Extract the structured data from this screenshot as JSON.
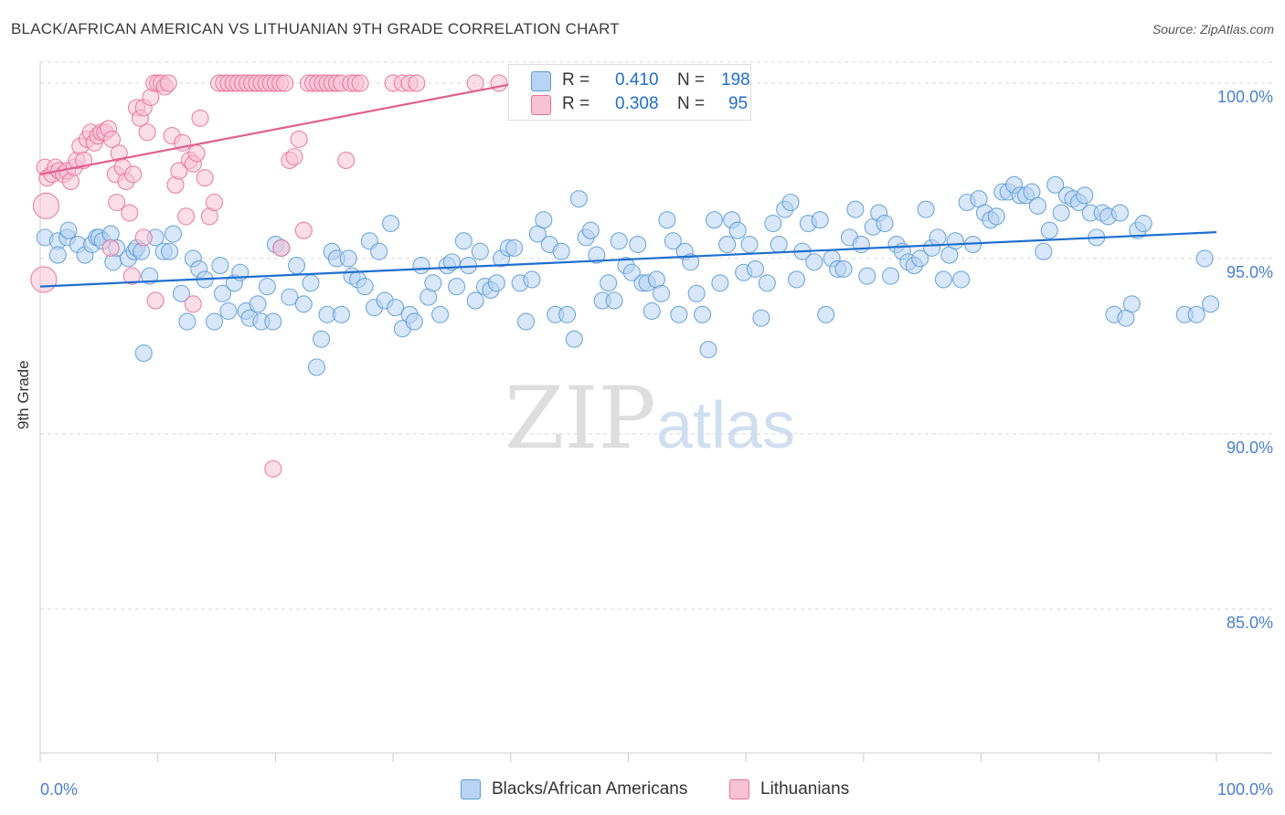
{
  "header": {
    "title": "BLACK/AFRICAN AMERICAN VS LITHUANIAN 9TH GRADE CORRELATION CHART",
    "source": "Source: ZipAtlas.com"
  },
  "watermark": {
    "zip": "ZIP",
    "atlas": "atlas"
  },
  "stats": [
    {
      "r_label": "R =",
      "r_value": "0.410",
      "n_label": "N =",
      "n_value": "198",
      "color": "#5b9bd5",
      "fill": "#b8d4f4"
    },
    {
      "r_label": "R =",
      "r_value": "0.308",
      "n_label": "N =",
      "n_value": "95",
      "color": "#e86f99",
      "fill": "#f8c2d5"
    }
  ],
  "legend": [
    {
      "label": "Blacks/African Americans",
      "color": "#5b9bd5",
      "fill": "#b8d4f4"
    },
    {
      "label": "Lithuanians",
      "color": "#e86f99",
      "fill": "#f8c2d5"
    }
  ],
  "chart_data": {
    "type": "scatter",
    "title": "BLACK/AFRICAN AMERICAN VS LITHUANIAN 9TH GRADE CORRELATION CHART",
    "xlabel": "",
    "ylabel": "9th Grade",
    "xlim": [
      0,
      100
    ],
    "ylim": [
      80.9,
      100.6
    ],
    "x_tick_labels": [
      "0.0%",
      "100.0%"
    ],
    "y_ticks": [
      100,
      95,
      90,
      85
    ],
    "y_tick_labels": [
      "100.0%",
      "95.0%",
      "90.0%",
      "85.0%"
    ],
    "grid": true,
    "legend_position": "bottom",
    "series": [
      {
        "name": "Blacks/African Americans",
        "color": "#5b9bd5",
        "fill": "#b8d4f4",
        "line_color": "#1f6fd0",
        "trend": {
          "x": [
            0,
            100
          ],
          "y": [
            94.2,
            95.75
          ]
        },
        "points": [
          [
            0.4,
            95.6
          ],
          [
            1.5,
            95.5
          ],
          [
            1.5,
            95.1
          ],
          [
            2.3,
            95.6
          ],
          [
            2.4,
            95.8
          ],
          [
            3.2,
            95.4
          ],
          [
            3.8,
            95.1
          ],
          [
            4.4,
            95.4
          ],
          [
            4.8,
            95.6
          ],
          [
            5.0,
            95.6
          ],
          [
            5.3,
            95.5
          ],
          [
            6.0,
            95.7
          ],
          [
            6.2,
            94.9
          ],
          [
            6.5,
            95.3
          ],
          [
            7.5,
            95.0
          ],
          [
            8.0,
            95.2
          ],
          [
            8.2,
            95.3
          ],
          [
            8.6,
            95.2
          ],
          [
            8.8,
            92.3
          ],
          [
            9.3,
            94.5
          ],
          [
            9.8,
            95.6
          ],
          [
            10.5,
            95.2
          ],
          [
            11.0,
            95.2
          ],
          [
            11.3,
            95.7
          ],
          [
            12.0,
            94.0
          ],
          [
            12.5,
            93.2
          ],
          [
            13.0,
            95.0
          ],
          [
            13.5,
            94.7
          ],
          [
            14.0,
            94.4
          ],
          [
            14.8,
            93.2
          ],
          [
            15.3,
            94.8
          ],
          [
            15.5,
            94.0
          ],
          [
            16.0,
            93.5
          ],
          [
            16.5,
            94.3
          ],
          [
            17.0,
            94.6
          ],
          [
            17.5,
            93.5
          ],
          [
            17.8,
            93.3
          ],
          [
            18.5,
            93.7
          ],
          [
            18.8,
            93.2
          ],
          [
            19.3,
            94.2
          ],
          [
            19.8,
            93.2
          ],
          [
            20.0,
            95.4
          ],
          [
            20.5,
            95.3
          ],
          [
            21.2,
            93.9
          ],
          [
            21.8,
            94.8
          ],
          [
            22.4,
            93.7
          ],
          [
            23.0,
            94.3
          ],
          [
            23.5,
            91.9
          ],
          [
            23.9,
            92.7
          ],
          [
            24.4,
            93.4
          ],
          [
            24.8,
            95.2
          ],
          [
            25.2,
            95.0
          ],
          [
            25.6,
            93.4
          ],
          [
            26.2,
            95.0
          ],
          [
            26.5,
            94.5
          ],
          [
            27.0,
            94.4
          ],
          [
            27.6,
            94.2
          ],
          [
            28.0,
            95.5
          ],
          [
            28.4,
            93.6
          ],
          [
            28.8,
            95.2
          ],
          [
            29.3,
            93.8
          ],
          [
            29.8,
            96.0
          ],
          [
            30.2,
            93.6
          ],
          [
            30.8,
            93.0
          ],
          [
            31.4,
            93.4
          ],
          [
            31.8,
            93.2
          ],
          [
            32.4,
            94.8
          ],
          [
            33.0,
            93.9
          ],
          [
            33.4,
            94.3
          ],
          [
            34.0,
            93.4
          ],
          [
            34.6,
            94.8
          ],
          [
            35.0,
            94.9
          ],
          [
            35.4,
            94.2
          ],
          [
            36.0,
            95.5
          ],
          [
            36.4,
            94.8
          ],
          [
            37.0,
            93.8
          ],
          [
            37.4,
            95.2
          ],
          [
            37.8,
            94.2
          ],
          [
            38.3,
            94.1
          ],
          [
            38.8,
            94.3
          ],
          [
            39.2,
            95.0
          ],
          [
            39.8,
            95.3
          ],
          [
            40.3,
            95.3
          ],
          [
            40.8,
            94.3
          ],
          [
            41.3,
            93.2
          ],
          [
            41.8,
            94.4
          ],
          [
            42.3,
            95.7
          ],
          [
            42.8,
            96.1
          ],
          [
            43.3,
            95.4
          ],
          [
            43.8,
            93.4
          ],
          [
            44.3,
            95.2
          ],
          [
            44.8,
            93.4
          ],
          [
            45.4,
            92.7
          ],
          [
            45.8,
            96.7
          ],
          [
            46.4,
            95.6
          ],
          [
            46.8,
            95.8
          ],
          [
            47.3,
            95.1
          ],
          [
            47.8,
            93.8
          ],
          [
            48.3,
            94.3
          ],
          [
            48.8,
            93.8
          ],
          [
            49.2,
            95.5
          ],
          [
            49.8,
            94.8
          ],
          [
            50.3,
            94.6
          ],
          [
            50.8,
            95.4
          ],
          [
            51.2,
            94.3
          ],
          [
            51.6,
            94.3
          ],
          [
            52.0,
            93.5
          ],
          [
            52.4,
            94.4
          ],
          [
            52.8,
            94.0
          ],
          [
            53.3,
            96.1
          ],
          [
            53.8,
            95.5
          ],
          [
            54.3,
            93.4
          ],
          [
            54.8,
            95.2
          ],
          [
            55.3,
            94.9
          ],
          [
            55.8,
            94.0
          ],
          [
            56.3,
            93.4
          ],
          [
            56.8,
            92.4
          ],
          [
            57.3,
            96.1
          ],
          [
            57.8,
            94.3
          ],
          [
            58.4,
            95.4
          ],
          [
            58.8,
            96.1
          ],
          [
            59.3,
            95.8
          ],
          [
            59.8,
            94.6
          ],
          [
            60.3,
            95.4
          ],
          [
            60.8,
            94.7
          ],
          [
            61.3,
            93.3
          ],
          [
            61.8,
            94.3
          ],
          [
            62.3,
            96.0
          ],
          [
            62.8,
            95.4
          ],
          [
            63.3,
            96.4
          ],
          [
            63.8,
            96.6
          ],
          [
            64.3,
            94.4
          ],
          [
            64.8,
            95.2
          ],
          [
            65.3,
            96.0
          ],
          [
            65.8,
            94.9
          ],
          [
            66.3,
            96.1
          ],
          [
            66.8,
            93.4
          ],
          [
            67.3,
            95.0
          ],
          [
            67.8,
            94.7
          ],
          [
            68.3,
            94.7
          ],
          [
            68.8,
            95.6
          ],
          [
            69.3,
            96.4
          ],
          [
            69.8,
            95.4
          ],
          [
            70.3,
            94.5
          ],
          [
            70.8,
            95.9
          ],
          [
            71.3,
            96.3
          ],
          [
            71.8,
            96.0
          ],
          [
            72.3,
            94.5
          ],
          [
            72.8,
            95.4
          ],
          [
            73.3,
            95.2
          ],
          [
            73.8,
            94.9
          ],
          [
            74.3,
            94.8
          ],
          [
            74.8,
            95.0
          ],
          [
            75.3,
            96.4
          ],
          [
            75.8,
            95.3
          ],
          [
            76.3,
            95.6
          ],
          [
            76.8,
            94.4
          ],
          [
            77.3,
            95.1
          ],
          [
            77.8,
            95.5
          ],
          [
            78.3,
            94.4
          ],
          [
            78.8,
            96.6
          ],
          [
            79.3,
            95.4
          ],
          [
            79.8,
            96.7
          ],
          [
            80.3,
            96.3
          ],
          [
            80.8,
            96.1
          ],
          [
            81.3,
            96.2
          ],
          [
            81.8,
            96.9
          ],
          [
            82.3,
            96.9
          ],
          [
            82.8,
            97.1
          ],
          [
            83.3,
            96.8
          ],
          [
            83.8,
            96.8
          ],
          [
            84.3,
            96.9
          ],
          [
            84.8,
            96.5
          ],
          [
            85.3,
            95.2
          ],
          [
            85.8,
            95.8
          ],
          [
            86.3,
            97.1
          ],
          [
            86.8,
            96.3
          ],
          [
            87.3,
            96.8
          ],
          [
            87.8,
            96.7
          ],
          [
            88.3,
            96.6
          ],
          [
            88.8,
            96.8
          ],
          [
            89.3,
            96.3
          ],
          [
            89.8,
            95.6
          ],
          [
            90.3,
            96.3
          ],
          [
            90.8,
            96.2
          ],
          [
            91.3,
            93.4
          ],
          [
            91.8,
            96.3
          ],
          [
            92.3,
            93.3
          ],
          [
            92.8,
            93.7
          ],
          [
            93.3,
            95.8
          ],
          [
            93.8,
            96.0
          ],
          [
            99.0,
            95.0
          ],
          [
            97.3,
            93.4
          ],
          [
            98.3,
            93.4
          ],
          [
            99.5,
            93.7
          ]
        ]
      },
      {
        "name": "Lithuanians",
        "color": "#e86f99",
        "fill": "#f8c2d5",
        "line_color": "#e0608e",
        "trend": {
          "x": [
            0,
            40.5
          ],
          "y": [
            97.4,
            100.0
          ]
        },
        "points": [
          [
            0.4,
            97.6
          ],
          [
            0.6,
            97.3
          ],
          [
            1.0,
            97.4
          ],
          [
            1.3,
            97.6
          ],
          [
            1.6,
            97.5
          ],
          [
            2.0,
            97.4
          ],
          [
            2.3,
            97.5
          ],
          [
            2.6,
            97.2
          ],
          [
            2.9,
            97.6
          ],
          [
            3.1,
            97.8
          ],
          [
            3.4,
            98.2
          ],
          [
            3.7,
            97.8
          ],
          [
            4.0,
            98.4
          ],
          [
            4.3,
            98.6
          ],
          [
            4.6,
            98.3
          ],
          [
            4.9,
            98.5
          ],
          [
            5.2,
            98.6
          ],
          [
            5.5,
            98.6
          ],
          [
            5.8,
            98.7
          ],
          [
            6.1,
            98.4
          ],
          [
            6.4,
            97.4
          ],
          [
            6.7,
            98.0
          ],
          [
            7.0,
            97.6
          ],
          [
            7.3,
            97.2
          ],
          [
            7.6,
            96.3
          ],
          [
            7.9,
            97.4
          ],
          [
            8.2,
            99.3
          ],
          [
            8.5,
            99.0
          ],
          [
            8.8,
            99.3
          ],
          [
            9.1,
            98.6
          ],
          [
            9.4,
            99.6
          ],
          [
            9.7,
            100.0
          ],
          [
            10.0,
            100.0
          ],
          [
            10.3,
            100.0
          ],
          [
            10.6,
            99.9
          ],
          [
            10.9,
            100.0
          ],
          [
            11.2,
            98.5
          ],
          [
            11.5,
            97.1
          ],
          [
            11.8,
            97.5
          ],
          [
            12.1,
            98.3
          ],
          [
            12.4,
            96.2
          ],
          [
            12.7,
            97.8
          ],
          [
            13.0,
            97.7
          ],
          [
            13.3,
            98.0
          ],
          [
            13.6,
            99.0
          ],
          [
            14.0,
            97.3
          ],
          [
            14.4,
            96.2
          ],
          [
            14.8,
            96.6
          ],
          [
            15.2,
            100.0
          ],
          [
            15.6,
            100.0
          ],
          [
            16.0,
            100.0
          ],
          [
            16.4,
            100.0
          ],
          [
            16.8,
            100.0
          ],
          [
            17.2,
            100.0
          ],
          [
            17.6,
            100.0
          ],
          [
            18.0,
            100.0
          ],
          [
            18.4,
            100.0
          ],
          [
            18.8,
            100.0
          ],
          [
            19.2,
            100.0
          ],
          [
            19.6,
            100.0
          ],
          [
            20.0,
            100.0
          ],
          [
            20.4,
            100.0
          ],
          [
            20.8,
            100.0
          ],
          [
            21.2,
            97.8
          ],
          [
            21.6,
            97.9
          ],
          [
            22.0,
            98.4
          ],
          [
            22.4,
            95.8
          ],
          [
            22.8,
            100.0
          ],
          [
            23.2,
            100.0
          ],
          [
            23.6,
            100.0
          ],
          [
            24.0,
            100.0
          ],
          [
            24.4,
            100.0
          ],
          [
            24.8,
            100.0
          ],
          [
            25.2,
            100.0
          ],
          [
            25.6,
            100.0
          ],
          [
            26.0,
            97.8
          ],
          [
            26.4,
            100.0
          ],
          [
            26.8,
            100.0
          ],
          [
            27.2,
            100.0
          ],
          [
            30.0,
            100.0
          ],
          [
            30.8,
            100.0
          ],
          [
            31.4,
            100.0
          ],
          [
            32.0,
            100.0
          ],
          [
            37.0,
            100.0
          ],
          [
            39.0,
            100.0
          ],
          [
            6.5,
            96.6
          ],
          [
            8.8,
            95.6
          ],
          [
            9.8,
            93.8
          ],
          [
            6.0,
            95.3
          ],
          [
            20.5,
            95.3
          ],
          [
            19.8,
            89.0
          ],
          [
            13.0,
            93.7
          ],
          [
            7.8,
            94.5
          ],
          [
            0.5,
            96.5
          ],
          [
            0.3,
            94.4
          ]
        ]
      }
    ]
  }
}
